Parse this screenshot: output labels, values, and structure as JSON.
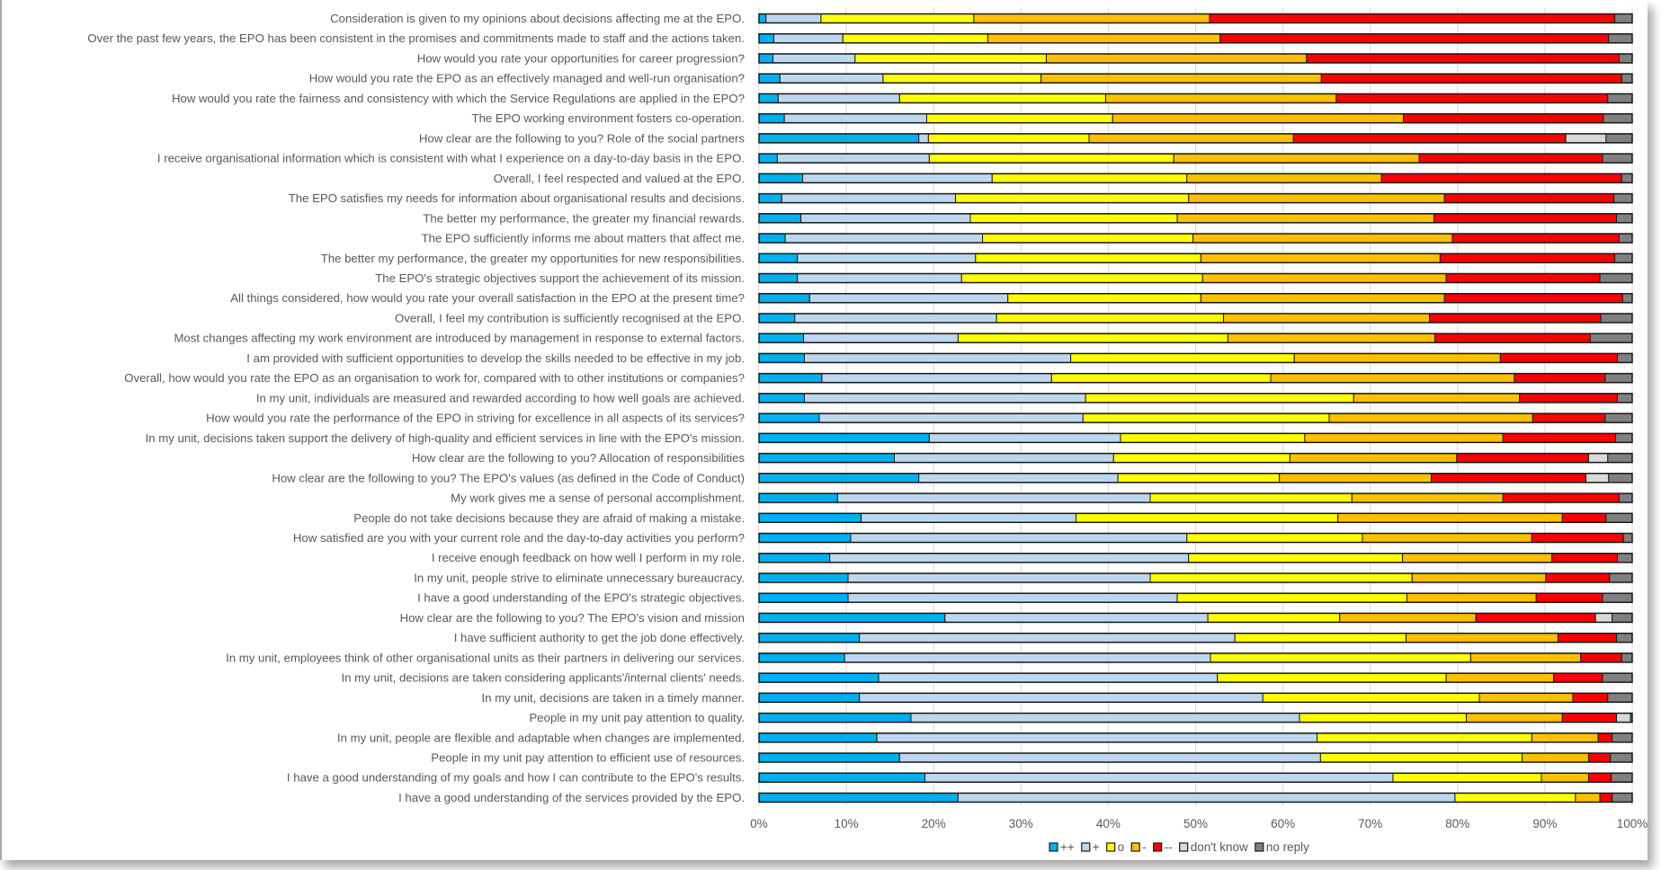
{
  "chart_data": {
    "type": "bar",
    "orientation": "horizontal",
    "stacked": "100%",
    "title": "",
    "xlabel": "",
    "ylabel": "",
    "xlim": [
      0,
      100
    ],
    "grid": true,
    "legend_position": "bottom",
    "x_ticks": [
      "0%",
      "10%",
      "20%",
      "30%",
      "40%",
      "50%",
      "60%",
      "70%",
      "80%",
      "90%",
      "100%"
    ],
    "series": [
      {
        "name": "++",
        "color": "#00B0F0"
      },
      {
        "name": "+",
        "color": "#BDD7EE"
      },
      {
        "name": "o",
        "color": "#FFFF00"
      },
      {
        "name": "-",
        "color": "#FFC000"
      },
      {
        "name": "--",
        "color": "#FF0000"
      },
      {
        "name": "don't know",
        "color": "#D9D9D9"
      },
      {
        "name": "no reply",
        "color": "#808080"
      }
    ],
    "categories": [
      "Consideration is given to my opinions about decisions affecting me at the EPO.",
      "Over the past few years, the EPO has been consistent in the promises and commitments made to staff and the actions taken.",
      "How would you rate your opportunities for career progression?",
      "How would you rate the EPO as an effectively managed and well-run organisation?",
      "How would you rate the fairness and consistency with which the Service Regulations are applied in the EPO?",
      "The EPO working environment fosters co-operation.",
      "How clear are the following to you? Role of the social partners",
      "I receive organisational information which is consistent with what I experience on a day-to-day basis in the EPO.",
      "Overall, I feel respected and valued at the EPO.",
      "The EPO satisfies my needs for information about organisational results and decisions.",
      "The better my performance, the greater my financial rewards.",
      "The EPO sufficiently informs me about matters that affect me.",
      "The better my performance, the greater my opportunities for new responsibilities.",
      "The EPO's strategic objectives support the achievement of its mission.",
      "All things considered, how would you rate your overall satisfaction in the EPO at the present time?",
      "Overall, I feel my contribution is sufficiently recognised at the EPO.",
      "Most changes affecting my work environment are introduced by management in response to external factors.",
      "I am provided with sufficient opportunities to develop the skills needed to be effective in my job.",
      "Overall, how would you rate the EPO as an organisation to work for, compared with to other institutions or companies?",
      "In my unit, individuals are measured and rewarded according to how well goals are achieved.",
      "How would you rate the performance of the EPO in striving for excellence in all aspects of its services?",
      "In my unit, decisions taken support the delivery of high-quality and efficient services in line with the EPO's mission.",
      "How clear are the following to you? Allocation of responsibilities",
      "How clear are the following to you? The EPO's values (as defined in the Code of Conduct)",
      "My work gives me a sense of personal accomplishment.",
      "People do not take decisions because they are afraid of making a mistake.",
      "How satisfied are you with your current role and the day-to-day activities you perform?",
      "I receive enough feedback on how well I perform in my role.",
      "In my unit, people strive to eliminate unnecessary bureaucracy.",
      "I have a good understanding of the EPO's strategic objectives.",
      "How clear are the following to you? The EPO's vision and mission",
      "I have sufficient authority to get the job done effectively.",
      "In my unit, employees think of other organisational units as their partners in delivering our services.",
      "In my unit, decisions are taken considering applicants'/internal clients' needs.",
      "In my unit, decisions are taken in a timely manner.",
      "People in my unit pay attention to quality.",
      "In my unit, people are flexible and adaptable when changes are implemented.",
      "People in my unit pay attention to efficient use of resources.",
      "I have a good understanding of my goals and how I can contribute to the EPO's results.",
      "I have a good understanding of the services provided by the EPO."
    ],
    "values_order": [
      "++",
      "+",
      "o",
      "-",
      "--",
      "don't know",
      "no reply"
    ],
    "values": [
      [
        0.8,
        6.3,
        17.5,
        27.0,
        46.4,
        0,
        2.0
      ],
      [
        1.7,
        7.9,
        16.6,
        26.6,
        44.5,
        0,
        2.7
      ],
      [
        1.6,
        9.4,
        21.9,
        29.8,
        35.8,
        0,
        1.5
      ],
      [
        2.4,
        11.8,
        18.1,
        32.1,
        34.4,
        0,
        1.2
      ],
      [
        2.2,
        13.9,
        23.6,
        26.4,
        31.1,
        0,
        2.8
      ],
      [
        2.9,
        16.3,
        21.3,
        33.3,
        22.9,
        0,
        3.3
      ],
      [
        18.3,
        1.1,
        18.4,
        23.4,
        31.2,
        4.6,
        3.0
      ],
      [
        2.1,
        17.4,
        28.0,
        28.1,
        21.0,
        0,
        3.4
      ],
      [
        5.0,
        21.7,
        22.3,
        22.3,
        27.5,
        0,
        1.2
      ],
      [
        2.6,
        19.9,
        26.7,
        29.3,
        19.4,
        0,
        2.1
      ],
      [
        4.8,
        19.4,
        23.7,
        29.4,
        20.9,
        0,
        1.8
      ],
      [
        3.0,
        22.6,
        24.1,
        29.7,
        19.1,
        0,
        1.5
      ],
      [
        4.4,
        20.4,
        25.8,
        27.4,
        20.0,
        0,
        2.0
      ],
      [
        4.4,
        18.8,
        27.6,
        27.9,
        17.6,
        0,
        3.7
      ],
      [
        5.8,
        22.7,
        22.1,
        27.9,
        20.4,
        0,
        1.1
      ],
      [
        4.1,
        23.1,
        26.0,
        23.6,
        19.6,
        0,
        3.6
      ],
      [
        5.1,
        17.7,
        30.9,
        23.7,
        17.8,
        0,
        4.8
      ],
      [
        5.2,
        30.5,
        25.6,
        23.6,
        13.4,
        0,
        1.7
      ],
      [
        7.2,
        26.3,
        25.1,
        27.9,
        10.4,
        0,
        3.1
      ],
      [
        5.2,
        32.2,
        30.7,
        19.0,
        11.2,
        0,
        1.7
      ],
      [
        6.9,
        30.2,
        28.2,
        23.3,
        8.3,
        0,
        3.1
      ],
      [
        19.5,
        21.9,
        21.1,
        22.7,
        12.9,
        0,
        1.9
      ],
      [
        15.5,
        25.1,
        20.2,
        19.1,
        15.1,
        2.2,
        2.8
      ],
      [
        18.3,
        22.8,
        18.5,
        17.4,
        17.7,
        2.6,
        2.7
      ],
      [
        9.0,
        35.8,
        23.1,
        17.3,
        13.3,
        0,
        1.5
      ],
      [
        11.7,
        24.6,
        30.0,
        25.7,
        5.0,
        0,
        3.0
      ],
      [
        10.5,
        38.5,
        20.1,
        19.4,
        10.5,
        0,
        1.0
      ],
      [
        8.1,
        41.1,
        24.5,
        17.1,
        7.5,
        0,
        1.7
      ],
      [
        10.2,
        34.6,
        30.0,
        15.3,
        7.3,
        0,
        2.6
      ],
      [
        10.2,
        37.7,
        26.3,
        14.8,
        7.6,
        0,
        3.4
      ],
      [
        21.3,
        30.1,
        15.1,
        15.6,
        13.7,
        1.9,
        2.3
      ],
      [
        11.5,
        43.0,
        19.6,
        17.4,
        6.7,
        0,
        1.8
      ],
      [
        9.8,
        41.9,
        29.8,
        12.6,
        4.7,
        0,
        1.2
      ],
      [
        13.7,
        38.8,
        26.2,
        12.3,
        5.6,
        0,
        3.4
      ],
      [
        11.5,
        46.2,
        24.8,
        10.7,
        4.0,
        0,
        2.8
      ],
      [
        17.4,
        44.5,
        19.1,
        11.0,
        6.2,
        1.6,
        0.2
      ],
      [
        13.5,
        50.4,
        24.6,
        7.6,
        1.6,
        0,
        2.3
      ],
      [
        16.1,
        48.2,
        23.1,
        7.6,
        2.5,
        0,
        2.5
      ],
      [
        19.0,
        53.6,
        17.0,
        5.4,
        2.6,
        0,
        2.4
      ],
      [
        22.8,
        56.9,
        13.8,
        2.8,
        1.4,
        0,
        2.3
      ]
    ]
  }
}
